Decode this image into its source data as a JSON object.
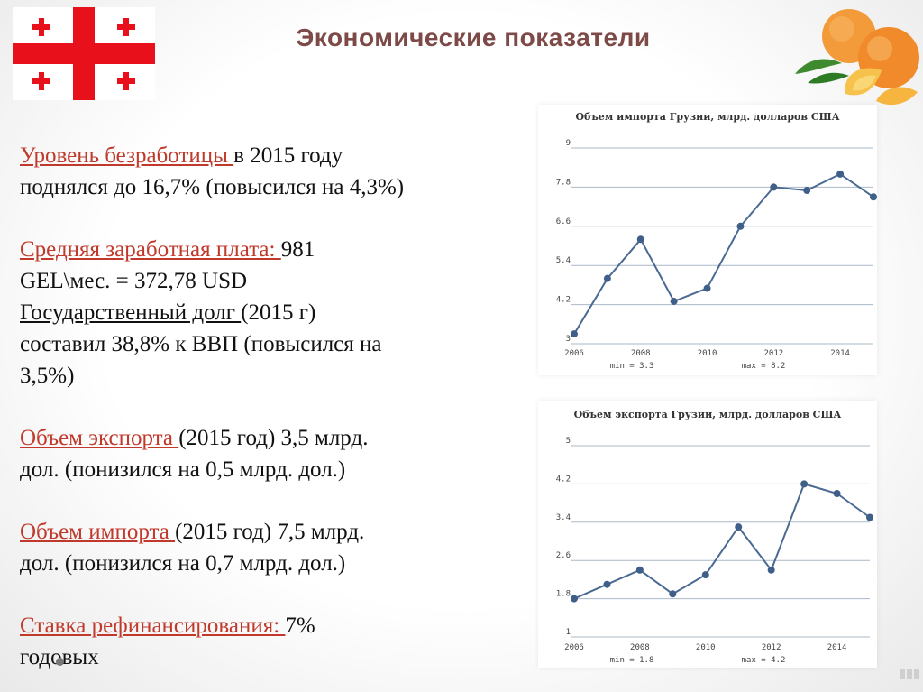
{
  "page": {
    "title": "Экономические показатели"
  },
  "text": {
    "p1": {
      "red": "Уровень безработицы ",
      "rest_a": "в 2015 году",
      "rest_b": "поднялся до 16,7% (повысился на 4,3%)"
    },
    "p2": {
      "red": "Средняя заработная плата: ",
      "rest_a": "981",
      "rest_b": "GEL\\мес. = 372,78 USD"
    },
    "p3": {
      "ul": "Государственный долг ",
      "rest_a": "(2015 г)",
      "rest_b": "составил 38,8% к ВВП (повысился на",
      "rest_c": "3,5%)"
    },
    "p4": {
      "red": "Объем экспорта ",
      "rest_a": "(2015 год) 3,5 млрд.",
      "rest_b": "дол. (понизился на 0,5 млрд. дол.)"
    },
    "p5": {
      "red": "Объем импорта ",
      "rest_a": "(2015 год) 7,5 млрд.",
      "rest_b": "дол. (понизился на 0,7 млрд. дол.)"
    },
    "p6": {
      "red": "Ставка рефинансирования: ",
      "rest_a": "7%",
      "rest_b": "годовых"
    }
  },
  "colors": {
    "accent_red": "#c0392b",
    "title": "#7d4a47",
    "line": "#4a6a93",
    "grid": "#a9b8c8",
    "flag_red": "#e8101a"
  },
  "icons": {
    "flag": "georgia-flag-icon",
    "fruit": "peach-icon"
  },
  "chart_data": [
    {
      "type": "line",
      "title": "Объем импорта Грузии, млрд. долларов США",
      "x": [
        2006,
        2007,
        2008,
        2009,
        2010,
        2011,
        2012,
        2013,
        2014,
        2015
      ],
      "values": [
        3.3,
        5.0,
        6.2,
        4.3,
        4.7,
        6.6,
        7.8,
        7.7,
        8.2,
        7.5
      ],
      "ylim": [
        3,
        9
      ],
      "yticks": [
        "9",
        "7.8",
        "6.6",
        "5.4",
        "4.2",
        "3"
      ],
      "ytick_values": [
        9,
        7.8,
        6.6,
        5.4,
        4.2,
        3
      ],
      "xticks": [
        "2006",
        "2008",
        "2010",
        "2012",
        "2014"
      ],
      "xtick_values": [
        2006,
        2008,
        2010,
        2012,
        2014
      ],
      "min_label": "min = 3.3",
      "max_label": "max = 8.2",
      "grid": true
    },
    {
      "type": "line",
      "title": "Объем экспорта Грузии, млрд. долларов США",
      "x": [
        2006,
        2007,
        2008,
        2009,
        2010,
        2011,
        2012,
        2013,
        2014,
        2015
      ],
      "values": [
        1.8,
        2.1,
        2.4,
        1.9,
        2.3,
        3.3,
        2.4,
        4.2,
        4.0,
        3.5
      ],
      "ylim": [
        1,
        5
      ],
      "yticks": [
        "5",
        "4.2",
        "3.4",
        "2.6",
        "1.8",
        "1"
      ],
      "ytick_values": [
        5,
        4.2,
        3.4,
        2.6,
        1.8,
        1
      ],
      "xticks": [
        "2006",
        "2008",
        "2010",
        "2012",
        "2014"
      ],
      "xtick_values": [
        2006,
        2008,
        2010,
        2012,
        2014
      ],
      "min_label": "min = 1.8",
      "max_label": "max = 4.2",
      "grid": true
    }
  ]
}
